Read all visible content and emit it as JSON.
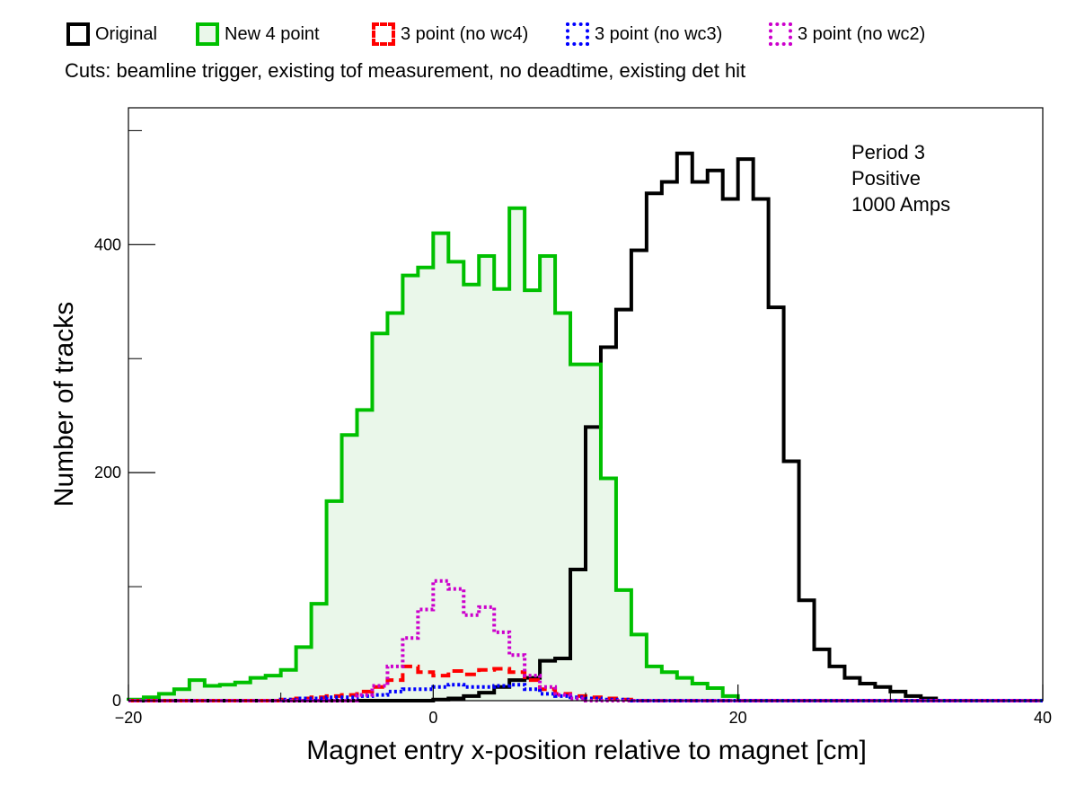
{
  "chart_data": {
    "type": "histogram",
    "cuts": "Cuts: beamline trigger, existing tof measurement, no deadtime, existing det hit",
    "annotations": [
      "Period 3",
      "Positive",
      "1000 Amps"
    ],
    "xlabel": "Magnet entry x-position relative to magnet [cm]",
    "ylabel": "Number of tracks",
    "xlim": [
      -20,
      40
    ],
    "ylim": [
      0,
      520
    ],
    "x_ticks": [
      -20,
      0,
      20,
      40
    ],
    "x_tick_labels": [
      "−20",
      "0",
      "20",
      "40"
    ],
    "y_ticks": [
      0,
      200,
      400
    ],
    "y_tick_labels": [
      "0",
      "200",
      "400"
    ],
    "grid": false,
    "legend_position": "top",
    "bin_width": 1,
    "bin_start": -20,
    "series": [
      {
        "name": "Original",
        "color": "#000000",
        "style": "solid",
        "fill": false,
        "values": [
          0,
          0,
          0,
          0,
          0,
          0,
          0,
          0,
          0,
          0,
          0,
          0,
          0,
          0,
          0,
          0,
          0,
          0,
          0,
          0,
          1,
          2,
          4,
          7,
          12,
          18,
          20,
          35,
          37,
          115,
          240,
          310,
          343,
          395,
          445,
          455,
          480,
          455,
          465,
          440,
          475,
          440,
          345,
          210,
          88,
          45,
          30,
          20,
          15,
          12,
          8,
          4,
          2,
          0,
          0,
          0,
          0,
          0,
          0,
          0
        ]
      },
      {
        "name": "New 4 point",
        "color": "#00c000",
        "style": "solid",
        "fill": true,
        "fill_color": "#eaf7ea",
        "values": [
          1,
          3,
          6,
          10,
          18,
          13,
          14,
          16,
          20,
          22,
          27,
          47,
          85,
          175,
          233,
          255,
          322,
          340,
          373,
          380,
          410,
          385,
          365,
          390,
          361,
          432,
          360,
          390,
          340,
          295,
          295,
          195,
          97,
          58,
          30,
          25,
          20,
          15,
          11,
          4,
          0,
          0,
          0,
          0,
          0,
          0,
          0,
          0,
          0,
          0,
          0,
          0,
          0,
          0,
          0,
          0,
          0,
          0,
          0,
          0
        ]
      },
      {
        "name": "3 point (no wc4)",
        "color": "#ff0000",
        "style": "dashed",
        "fill": false,
        "values": [
          0,
          0,
          0,
          0,
          0,
          0,
          0,
          0,
          0,
          0,
          1,
          2,
          3,
          4,
          5,
          8,
          12,
          18,
          30,
          25,
          22,
          26,
          23,
          27,
          28,
          25,
          18,
          10,
          6,
          4,
          3,
          2,
          1,
          0,
          0,
          0,
          0,
          0,
          0,
          0,
          0,
          0,
          0,
          0,
          0,
          0,
          0,
          0,
          0,
          0,
          0,
          0,
          0,
          0,
          0,
          0,
          0,
          0,
          0,
          0
        ]
      },
      {
        "name": "3 point (no wc3)",
        "color": "#0000ff",
        "style": "dotted",
        "fill": false,
        "values": [
          0,
          0,
          0,
          0,
          0,
          0,
          0,
          0,
          0,
          0,
          1,
          2,
          2,
          3,
          3,
          4,
          5,
          8,
          10,
          10,
          12,
          14,
          12,
          12,
          13,
          14,
          10,
          6,
          4,
          3,
          2,
          1,
          1,
          0,
          0,
          0,
          0,
          0,
          0,
          0,
          0,
          0,
          0,
          0,
          0,
          0,
          0,
          0,
          0,
          0,
          0,
          0,
          0,
          0,
          0,
          0,
          0,
          0,
          0,
          0
        ]
      },
      {
        "name": "3 point (no wc2)",
        "color": "#cc00cc",
        "style": "dotted",
        "fill": false,
        "values": [
          0,
          0,
          0,
          0,
          0,
          0,
          0,
          0,
          0,
          0,
          0,
          0,
          0,
          0,
          0,
          5,
          13,
          30,
          55,
          80,
          105,
          98,
          75,
          82,
          60,
          40,
          22,
          12,
          5,
          2,
          0,
          0,
          0,
          0,
          0,
          0,
          0,
          0,
          0,
          0,
          0,
          0,
          0,
          0,
          0,
          0,
          0,
          0,
          0,
          0,
          0,
          0,
          0,
          0,
          0,
          0,
          0,
          0,
          0,
          0
        ]
      }
    ]
  }
}
